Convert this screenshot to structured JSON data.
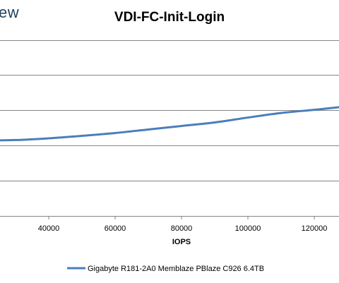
{
  "brand": {
    "text": "ew"
  },
  "chart_data": {
    "type": "line",
    "title": "VDI-FC-Init-Login",
    "xlabel": "IOPS",
    "ylabel": "",
    "grid": true,
    "legend_position": "bottom",
    "x_ticks": [
      40000,
      60000,
      80000,
      100000,
      120000
    ],
    "x_tick_labels": [
      "40000",
      "60000",
      "80000",
      "100000",
      "120000"
    ],
    "series": [
      {
        "name": "Gigabyte R181-2A0 Memblaze PBlaze C926 6.4TB",
        "color": "#4a7ebb",
        "x": [
          22000,
          30000,
          40000,
          50000,
          60000,
          70000,
          80000,
          90000,
          100000,
          110000,
          120000,
          128000
        ],
        "y": [
          2.15,
          2.16,
          2.21,
          2.28,
          2.36,
          2.46,
          2.56,
          2.66,
          2.8,
          2.93,
          3.02,
          3.1
        ]
      }
    ]
  }
}
